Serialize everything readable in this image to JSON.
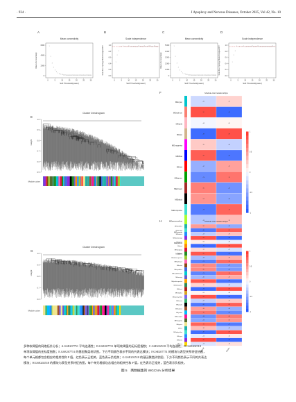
{
  "header": {
    "page": "· 934 ·",
    "journal": "J Apoplexy and Nervous Diseases, October 2025, Vol 42, No. 10"
  },
  "panels": {
    "A": {
      "letter": "A",
      "title": "Mean connectivity",
      "xlabel": "Soft Threshold(power)",
      "ylabel": "Mean Connectivity"
    },
    "B": {
      "letter": "B",
      "title": "Scale independence",
      "xlabel": "Soft Threshold(power)",
      "ylabel": "Scale Free Topology Model Fit,signed R^2"
    },
    "C": {
      "letter": "C",
      "title": "Mean connectivity",
      "xlabel": "Soft Threshold(power)",
      "ylabel": "Mean Connectivity"
    },
    "D": {
      "letter": "D",
      "title": "Scale independence",
      "xlabel": "Soft Threshold(power)",
      "ylabel": "Scale Free Topology Model Fit,signed R^2"
    },
    "E": {
      "letter": "E",
      "title": "Cluster Dendrogram",
      "ylabel": "Height",
      "colors_label": "Module colors"
    },
    "F": {
      "letter": "F",
      "title": "Module-trait relationships",
      "xlabels": [
        "Normal",
        "Stroke"
      ]
    },
    "G": {
      "letter": "G",
      "title": "Cluster Dendrogram",
      "ylabel": "Height",
      "colors_label": "Module colors"
    },
    "H": {
      "letter": "H",
      "title": "Module-trait relationships",
      "xlabels": [
        "Normal",
        "Stroke"
      ]
    }
  },
  "axis_ticks": {
    "x": [
      "0",
      "5",
      "10",
      "15",
      "20",
      "25",
      "30"
    ],
    "A_y": [
      "6000",
      "4000",
      "2000",
      "0"
    ],
    "B_y": [
      "1.0",
      "0.8",
      "0.6",
      "0.4",
      "0.2",
      "0.0"
    ],
    "C_y": [
      "5 000",
      "4 000",
      "3 000",
      "2 000",
      "1 000",
      "0"
    ],
    "D_y": [
      "1.0",
      "0.8",
      "0.6",
      "0.4",
      "0.2",
      "0.0"
    ],
    "E_y": [
      "1.0",
      "0.9",
      "0.8",
      "0.7",
      "0.6",
      "0.5"
    ],
    "G_y": [
      "1.0",
      "0.9",
      "0.8",
      "0.7",
      "0.6"
    ],
    "scale": [
      "1",
      "0.5",
      "0",
      "-0.5",
      "-1"
    ]
  },
  "F_modules": [
    "MEcyan",
    "MEsalmon",
    "MEpink",
    "MEtan",
    "MEmagenta",
    "MEblue",
    "MEred",
    "MEgreen",
    "MEbrown",
    "MEblack",
    "MEturquoise",
    "MEgreenyellow",
    "MEpurple",
    "MEyellow",
    "MEgrey"
  ],
  "H_modules": [
    "MEdarkblue",
    "MEgrey60",
    "MEsienna",
    "MEdarkorange",
    "MEplum1",
    "MEpink",
    "MEdarkgrey",
    "MEred",
    "MEdarkturquoise",
    "MElightcyan",
    "MEviolet",
    "MEroyalblue",
    "MEsaddlebrown",
    "MEorange",
    "MEpaleturquoise",
    "MEdarkgreen",
    "MEblack",
    "MEskyblue",
    "MEgreenyellow",
    "MEbrown",
    "MEpurple",
    "MEsalmon",
    "MEyellow",
    "MEorange2",
    "MEmagenta",
    "MEgreen",
    "MEtan",
    "MElightyellow",
    "MEcyan",
    "MEwhite",
    "MEgrey"
  ],
  "caption": {
    "lines": [
      "多种软阈值的网络拓扑分析；A.GSE207751 平均连通性；B.GSE207751 单项软阈值的无标度指数；C.GSE202518 平均连通性；D.GSE202518",
      "单项软阈值的无标度指数；E.GSE207751 的基因聚类树状图，下方不同颜色表示不同的共表达模块；F.GSE207751 的模块与表型关系特征热图，",
      "每个单元格都包含相应的相关性和 P 值，红色表示正相关，蓝色表示负相关；G.GSE202518 的基因聚类树状图，下方不同颜色表示不同的共表达",
      "模块；H.GSE202518 的模块与表型关系特征热图，每个单元格都包含相应的相关性和 P 值，红色表示正相关，蓝色表示负相关。"
    ],
    "figure_title": "图 5　两数据集的 WGCNA 分析结果"
  }
}
